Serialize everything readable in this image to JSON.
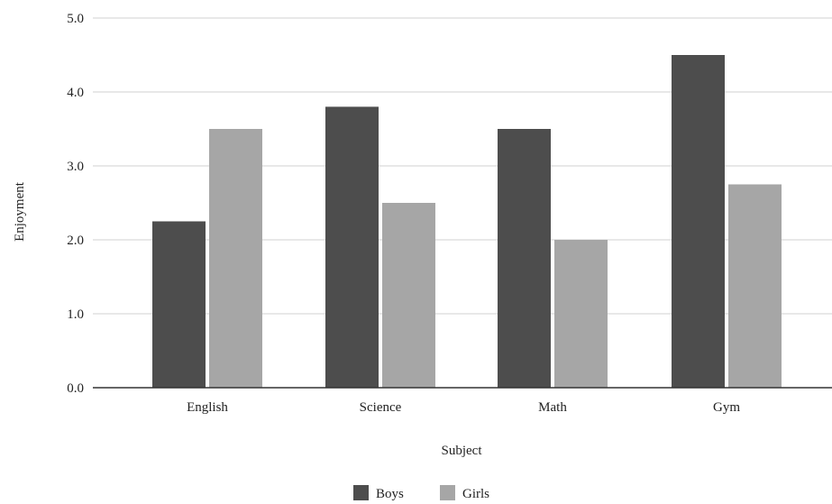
{
  "chart_data": {
    "type": "bar",
    "title": "",
    "xlabel": "Subject",
    "ylabel": "Enjoyment",
    "categories": [
      "English",
      "Science",
      "Math",
      "Gym"
    ],
    "series": [
      {
        "name": "Boys",
        "values": [
          2.25,
          3.8,
          3.5,
          4.5
        ],
        "color": "#4d4d4d"
      },
      {
        "name": "Girls",
        "values": [
          3.5,
          2.5,
          2.0,
          2.75
        ],
        "color": "#a6a6a6"
      }
    ],
    "ylim": [
      0,
      5
    ],
    "yticks": [
      "0.0",
      "1.0",
      "2.0",
      "3.0",
      "4.0",
      "5.0"
    ],
    "grid": true,
    "legend_position": "bottom"
  }
}
